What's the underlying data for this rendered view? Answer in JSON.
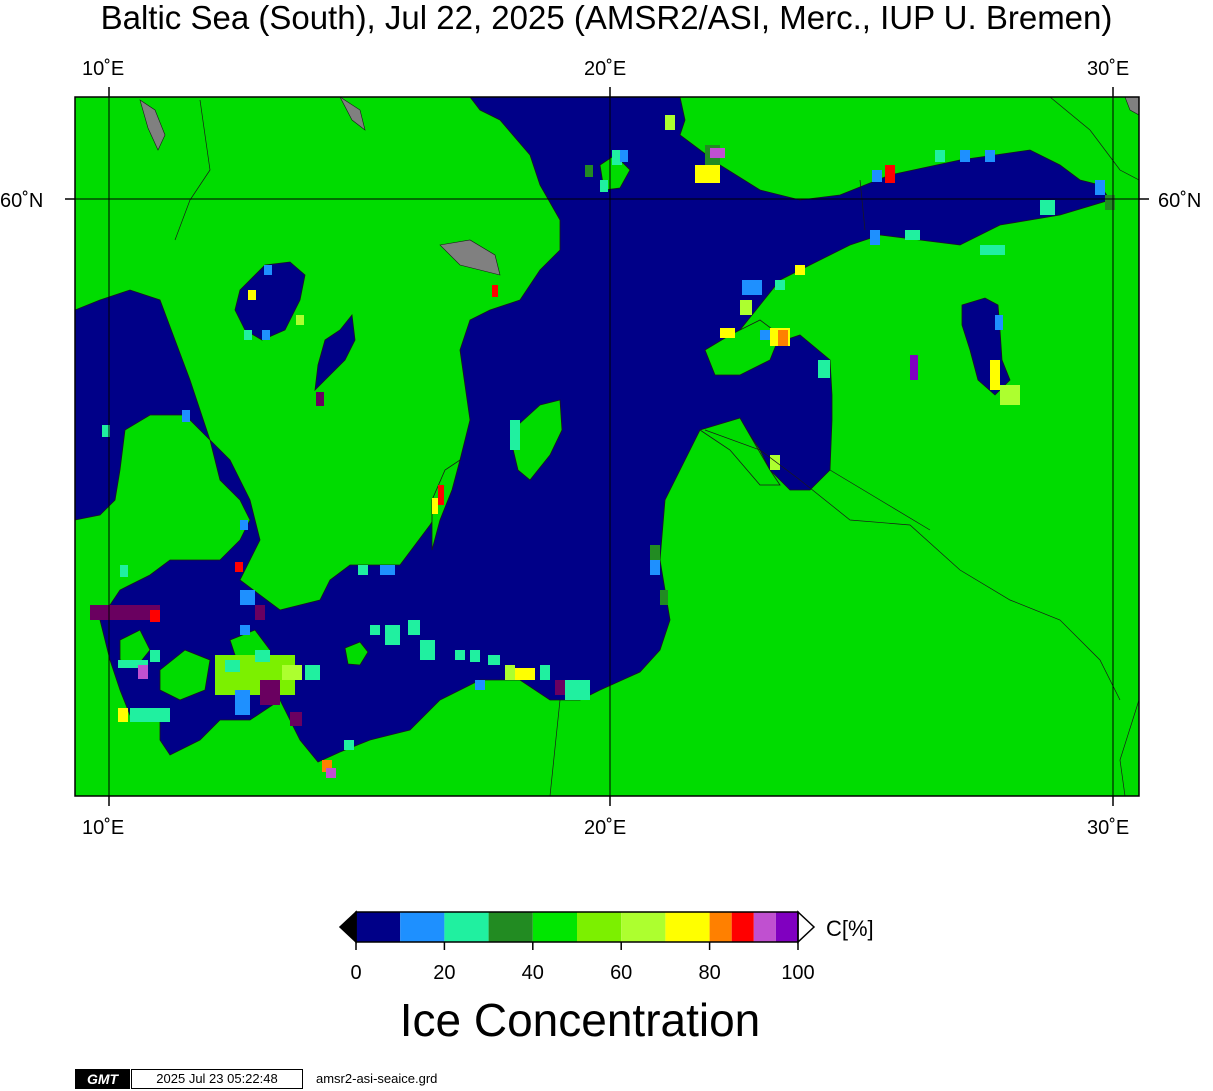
{
  "title": "Baltic Sea (South), Jul 22, 2025 (AMSR2/ASI, Merc., IUP U. Bremen)",
  "axes": {
    "top_lon_labels": [
      "10˚E",
      "20˚E",
      "30˚E"
    ],
    "bottom_lon_labels": [
      "10˚E",
      "20˚E",
      "30˚E"
    ],
    "left_lat_label": "60˚N",
    "right_lat_label": "60˚N"
  },
  "colors": {
    "land": "#00dc00",
    "water": "#000088",
    "no_data": "#808080",
    "coast": "#1a1a1a"
  },
  "colorbar": {
    "title": "Ice Concentration",
    "unit": "C[%]",
    "tick_labels": [
      "0",
      "20",
      "40",
      "60",
      "80",
      "100"
    ],
    "bins": [
      {
        "from": 0,
        "to": 10,
        "color": "#000088"
      },
      {
        "from": 10,
        "to": 20,
        "color": "#1e90ff"
      },
      {
        "from": 20,
        "to": 30,
        "color": "#20f0a0"
      },
      {
        "from": 30,
        "to": 40,
        "color": "#228b22"
      },
      {
        "from": 40,
        "to": 50,
        "color": "#00e600"
      },
      {
        "from": 50,
        "to": 60,
        "color": "#7cf000"
      },
      {
        "from": 60,
        "to": 70,
        "color": "#adff2f"
      },
      {
        "from": 70,
        "to": 80,
        "color": "#ffff00"
      },
      {
        "from": 80,
        "to": 85,
        "color": "#ff8000"
      },
      {
        "from": 85,
        "to": 90,
        "color": "#ff0000"
      },
      {
        "from": 90,
        "to": 95,
        "color": "#c050d0"
      },
      {
        "from": 95,
        "to": 100,
        "color": "#8000c0"
      }
    ],
    "under_color": "#000000",
    "over_color": "#ffffff"
  },
  "footer": {
    "logo": "GMT",
    "timestamp": "2025 Jul 23 05:22:48",
    "grid_file": "amsr2-asi-seaice.grd"
  }
}
